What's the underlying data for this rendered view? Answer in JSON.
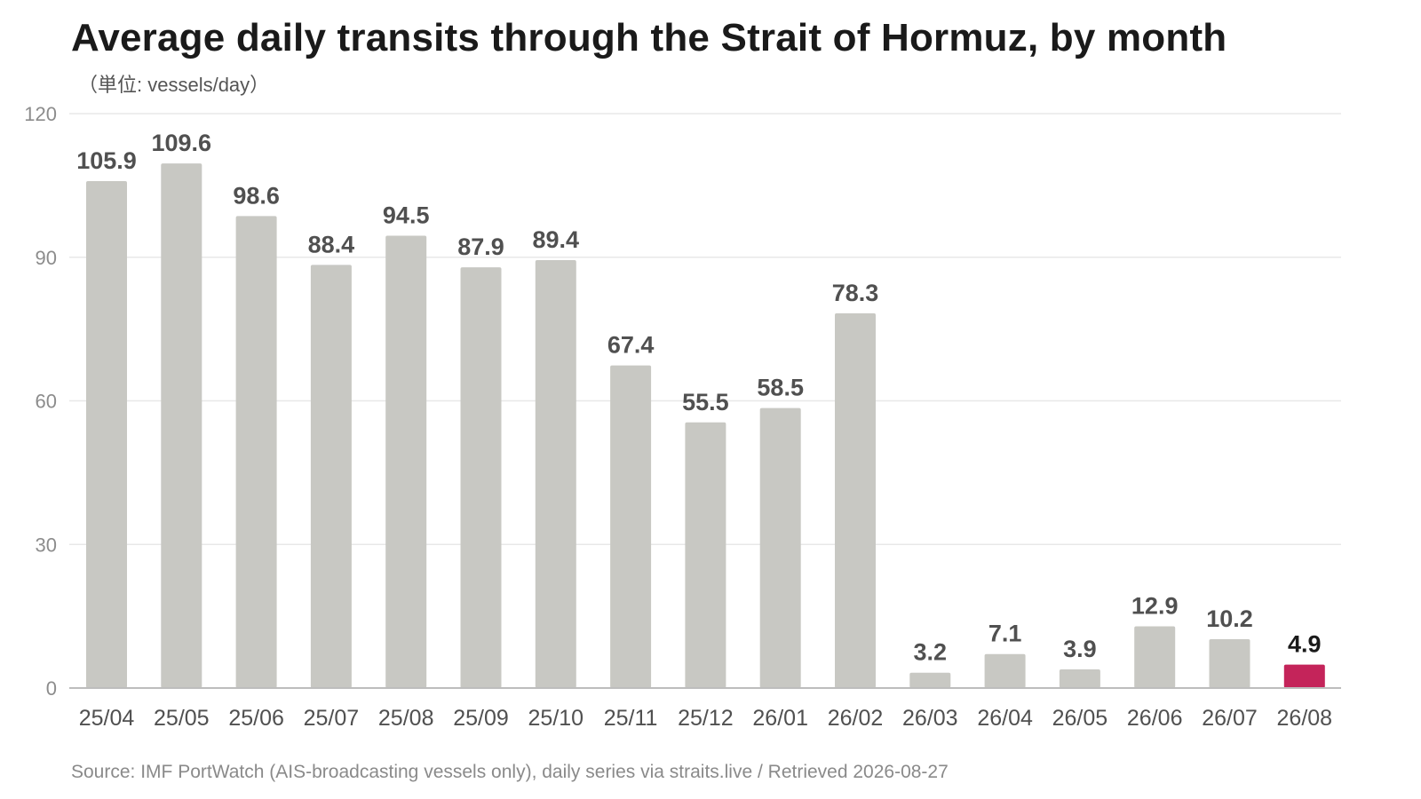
{
  "chart_data": {
    "type": "bar",
    "title": "Average daily transits through the Strait of Hormuz, by month",
    "subtitle": "（単位: vessels/day）",
    "xlabel": "",
    "ylabel": "",
    "categories": [
      "25/04",
      "25/05",
      "25/06",
      "25/07",
      "25/08",
      "25/09",
      "25/10",
      "25/11",
      "25/12",
      "26/01",
      "26/02",
      "26/03",
      "26/04",
      "26/05",
      "26/06",
      "26/07",
      "26/08"
    ],
    "values": [
      105.9,
      109.6,
      98.6,
      88.4,
      94.5,
      87.9,
      89.4,
      67.4,
      55.5,
      58.5,
      78.3,
      3.2,
      7.1,
      3.9,
      12.9,
      10.2,
      4.9
    ],
    "value_labels": [
      "105.9",
      "109.6",
      "98.6",
      "88.4",
      "94.5",
      "87.9",
      "89.4",
      "67.4",
      "55.5",
      "58.5",
      "78.3",
      "3.2",
      "7.1",
      "3.9",
      "12.9",
      "10.2",
      "4.9"
    ],
    "ylim": [
      0,
      120
    ],
    "yticks": [
      0,
      30,
      60,
      90,
      120
    ],
    "grid": true,
    "highlight_index": 16,
    "colors": {
      "bar": "#c8c8c3",
      "highlight": "#c4245a",
      "grid": "#e8e8e8",
      "axis": "#bdbdbd"
    },
    "source": "Source: IMF PortWatch (AIS-broadcasting vessels only), daily series via straits.live / Retrieved 2026-08-27"
  }
}
